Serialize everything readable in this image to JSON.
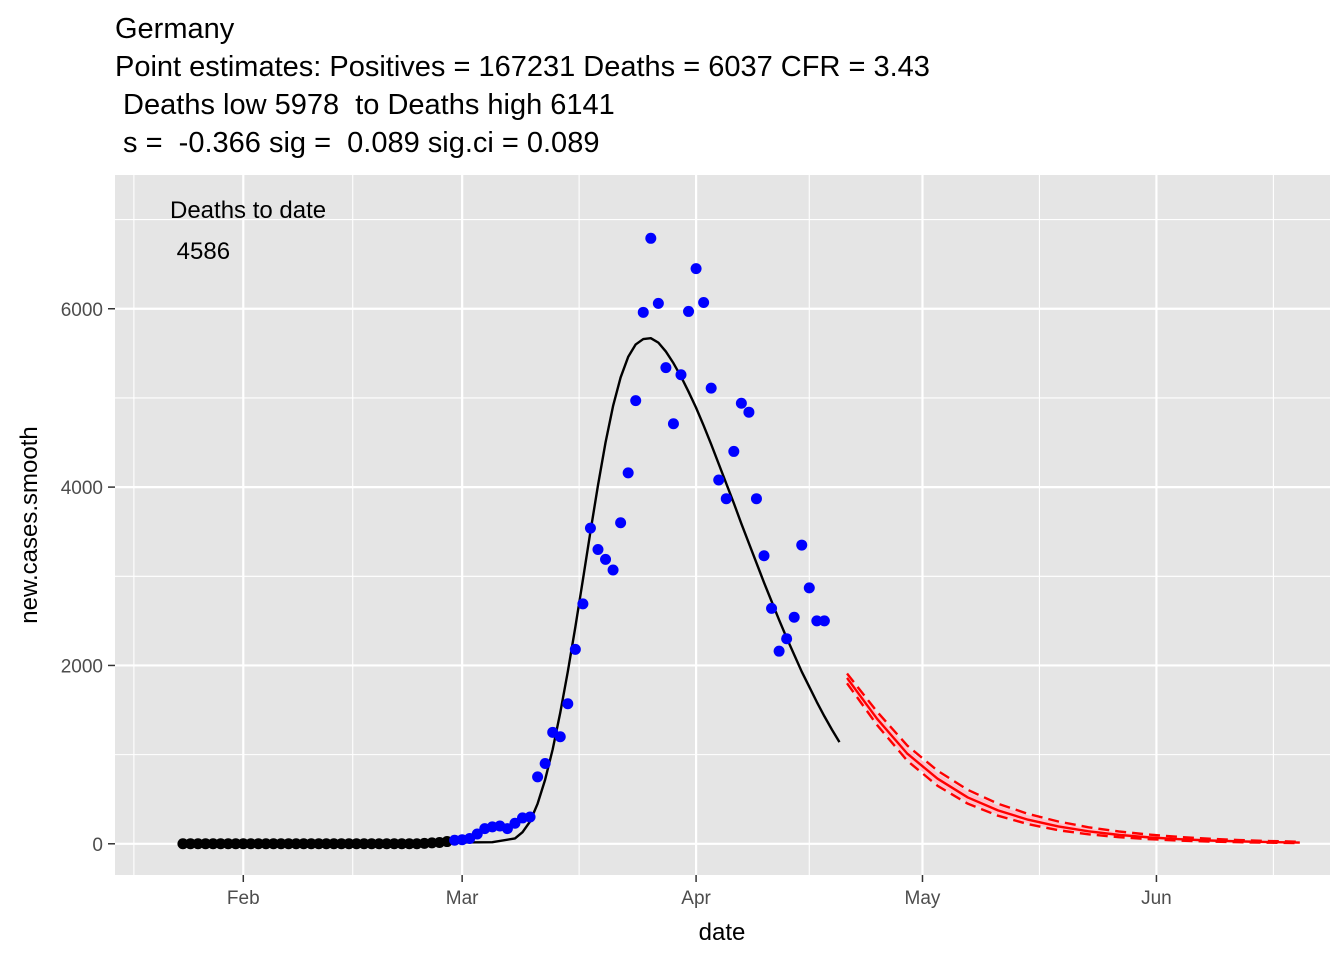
{
  "chart_data": {
    "type": "scatter",
    "title_lines": [
      "Germany",
      "Point estimates: Positives = 167231 Deaths = 6037 CFR = 3.43",
      " Deaths low 5978  to Deaths high 6141",
      " s =  -0.366 sig =  0.089 sig.ci = 0.089"
    ],
    "xlabel": "date",
    "ylabel": "new.cases.smooth",
    "x_axis_type": "date",
    "xlim": [
      "2020-01-15",
      "2020-06-24"
    ],
    "ylim": [
      -350,
      7500
    ],
    "x_ticks": [
      {
        "date": "2020-02-01",
        "label": "Feb"
      },
      {
        "date": "2020-03-01",
        "label": "Mar"
      },
      {
        "date": "2020-04-01",
        "label": "Apr"
      },
      {
        "date": "2020-05-01",
        "label": "May"
      },
      {
        "date": "2020-06-01",
        "label": "Jun"
      }
    ],
    "y_ticks": [
      0,
      2000,
      4000,
      6000
    ],
    "grid": true,
    "annotation": {
      "line1": "Deaths to date",
      "line2": " 4586"
    },
    "colors": {
      "panel": "#e5e5e5",
      "grid": "#ffffff",
      "early_points": "#000000",
      "observed_points": "#0000ff",
      "fit_line": "#000000",
      "projection": "#ff0000",
      "projection_band": "#ffc0cb"
    },
    "series": [
      {
        "kind": "points",
        "color_key": "early_points",
        "x": [
          "2020-01-24",
          "2020-01-25",
          "2020-01-26",
          "2020-01-27",
          "2020-01-28",
          "2020-01-29",
          "2020-01-30",
          "2020-01-31",
          "2020-02-01",
          "2020-02-02",
          "2020-02-03",
          "2020-02-04",
          "2020-02-05",
          "2020-02-06",
          "2020-02-07",
          "2020-02-08",
          "2020-02-09",
          "2020-02-10",
          "2020-02-11",
          "2020-02-12",
          "2020-02-13",
          "2020-02-14",
          "2020-02-15",
          "2020-02-16",
          "2020-02-17",
          "2020-02-18",
          "2020-02-19",
          "2020-02-20",
          "2020-02-21",
          "2020-02-22",
          "2020-02-23",
          "2020-02-24",
          "2020-02-25",
          "2020-02-26",
          "2020-02-27",
          "2020-02-28"
        ],
        "y": [
          0,
          0,
          0,
          0,
          0,
          0,
          0,
          0,
          0,
          0,
          0,
          0,
          0,
          0,
          0,
          0,
          0,
          0,
          0,
          0,
          0,
          0,
          0,
          0,
          0,
          0,
          0,
          0,
          0,
          0,
          0,
          0,
          5,
          10,
          15,
          25
        ]
      },
      {
        "kind": "points",
        "color_key": "observed_points",
        "x": [
          "2020-02-29",
          "2020-03-01",
          "2020-03-02",
          "2020-03-03",
          "2020-03-04",
          "2020-03-05",
          "2020-03-06",
          "2020-03-07",
          "2020-03-08",
          "2020-03-09",
          "2020-03-10",
          "2020-03-11",
          "2020-03-12",
          "2020-03-13",
          "2020-03-14",
          "2020-03-15",
          "2020-03-16",
          "2020-03-17",
          "2020-03-18",
          "2020-03-19",
          "2020-03-20",
          "2020-03-21",
          "2020-03-22",
          "2020-03-23",
          "2020-03-24",
          "2020-03-25",
          "2020-03-26",
          "2020-03-27",
          "2020-03-28",
          "2020-03-29",
          "2020-03-30",
          "2020-03-31",
          "2020-04-01",
          "2020-04-02",
          "2020-04-03",
          "2020-04-04",
          "2020-04-05",
          "2020-04-06",
          "2020-04-07",
          "2020-04-08",
          "2020-04-09",
          "2020-04-10",
          "2020-04-11",
          "2020-04-12",
          "2020-04-13",
          "2020-04-14",
          "2020-04-15",
          "2020-04-16",
          "2020-04-17",
          "2020-04-18"
        ],
        "y": [
          40,
          45,
          60,
          110,
          170,
          190,
          200,
          170,
          230,
          290,
          300,
          750,
          900,
          1250,
          1200,
          1570,
          2180,
          2690,
          3540,
          3300,
          3190,
          3070,
          3600,
          4160,
          4970,
          5960,
          6790,
          6060,
          5340,
          4710,
          5260,
          5970,
          6450,
          6070,
          5110,
          4080,
          3870,
          4400,
          4940,
          4840,
          3870,
          3230,
          2640,
          2160,
          2300,
          2540,
          3350,
          2870,
          2500,
          2500
        ]
      },
      {
        "kind": "line",
        "color_key": "fit_line",
        "x": [
          "2020-03-01",
          "2020-03-05",
          "2020-03-08",
          "2020-03-09",
          "2020-03-10",
          "2020-03-11",
          "2020-03-12",
          "2020-03-13",
          "2020-03-14",
          "2020-03-15",
          "2020-03-16",
          "2020-03-17",
          "2020-03-18",
          "2020-03-19",
          "2020-03-20",
          "2020-03-21",
          "2020-03-22",
          "2020-03-23",
          "2020-03-24",
          "2020-03-25",
          "2020-03-26",
          "2020-03-27",
          "2020-03-28",
          "2020-03-29",
          "2020-03-30",
          "2020-03-31",
          "2020-04-01",
          "2020-04-02",
          "2020-04-03",
          "2020-04-04",
          "2020-04-05",
          "2020-04-06",
          "2020-04-07",
          "2020-04-08",
          "2020-04-09",
          "2020-04-10",
          "2020-04-11",
          "2020-04-12",
          "2020-04-13",
          "2020-04-14",
          "2020-04-15",
          "2020-04-16",
          "2020-04-17",
          "2020-04-18",
          "2020-04-19",
          "2020-04-20"
        ],
        "y": [
          15,
          18,
          60,
          130,
          250,
          450,
          720,
          1060,
          1470,
          1930,
          2430,
          2960,
          3500,
          4020,
          4500,
          4910,
          5230,
          5460,
          5600,
          5660,
          5670,
          5620,
          5520,
          5390,
          5240,
          5070,
          4890,
          4690,
          4480,
          4260,
          4040,
          3820,
          3590,
          3370,
          3150,
          2930,
          2720,
          2510,
          2310,
          2120,
          1930,
          1760,
          1590,
          1430,
          1280,
          1140
        ]
      },
      {
        "kind": "band",
        "color_key": "projection_band",
        "x": [
          "2020-04-21",
          "2020-04-25",
          "2020-04-29",
          "2020-05-03",
          "2020-05-07",
          "2020-05-11",
          "2020-05-15",
          "2020-05-19",
          "2020-05-23",
          "2020-05-27",
          "2020-05-31",
          "2020-06-04",
          "2020-06-08",
          "2020-06-12",
          "2020-06-16",
          "2020-06-20"
        ],
        "lower": [
          1820,
          1350,
          950,
          670,
          470,
          330,
          230,
          160,
          112,
          78,
          55,
          39,
          27,
          19,
          13,
          9
        ],
        "upper": [
          1890,
          1460,
          1070,
          790,
          580,
          430,
          320,
          235,
          173,
          128,
          95,
          70,
          52,
          38,
          28,
          21
        ]
      },
      {
        "kind": "line",
        "color_key": "projection",
        "x": [
          "2020-04-21",
          "2020-04-25",
          "2020-04-29",
          "2020-05-03",
          "2020-05-07",
          "2020-05-11",
          "2020-05-15",
          "2020-05-19",
          "2020-05-23",
          "2020-05-27",
          "2020-05-31",
          "2020-06-04",
          "2020-06-08",
          "2020-06-12",
          "2020-06-16",
          "2020-06-20"
        ],
        "y": [
          1860,
          1400,
          1010,
          730,
          520,
          375,
          270,
          195,
          140,
          100,
          72,
          52,
          37,
          27,
          19,
          14
        ]
      },
      {
        "kind": "dashed_line",
        "color_key": "projection",
        "x": [
          "2020-04-21",
          "2020-04-25",
          "2020-04-29",
          "2020-05-03",
          "2020-05-07",
          "2020-05-11",
          "2020-05-15",
          "2020-05-19",
          "2020-05-23",
          "2020-05-27",
          "2020-05-31",
          "2020-06-04",
          "2020-06-08",
          "2020-06-12",
          "2020-06-16",
          "2020-06-20"
        ],
        "y": [
          1800,
          1330,
          930,
          650,
          450,
          315,
          220,
          152,
          106,
          74,
          52,
          36,
          25,
          18,
          12,
          8
        ]
      },
      {
        "kind": "dashed_line",
        "color_key": "projection",
        "x": [
          "2020-04-21",
          "2020-04-25",
          "2020-04-29",
          "2020-05-03",
          "2020-05-07",
          "2020-05-11",
          "2020-05-15",
          "2020-05-19",
          "2020-05-23",
          "2020-05-27",
          "2020-05-31",
          "2020-06-04",
          "2020-06-08",
          "2020-06-12",
          "2020-06-16",
          "2020-06-20"
        ],
        "y": [
          1910,
          1480,
          1100,
          820,
          605,
          450,
          335,
          250,
          185,
          138,
          103,
          77,
          57,
          42,
          31,
          23
        ]
      }
    ]
  }
}
